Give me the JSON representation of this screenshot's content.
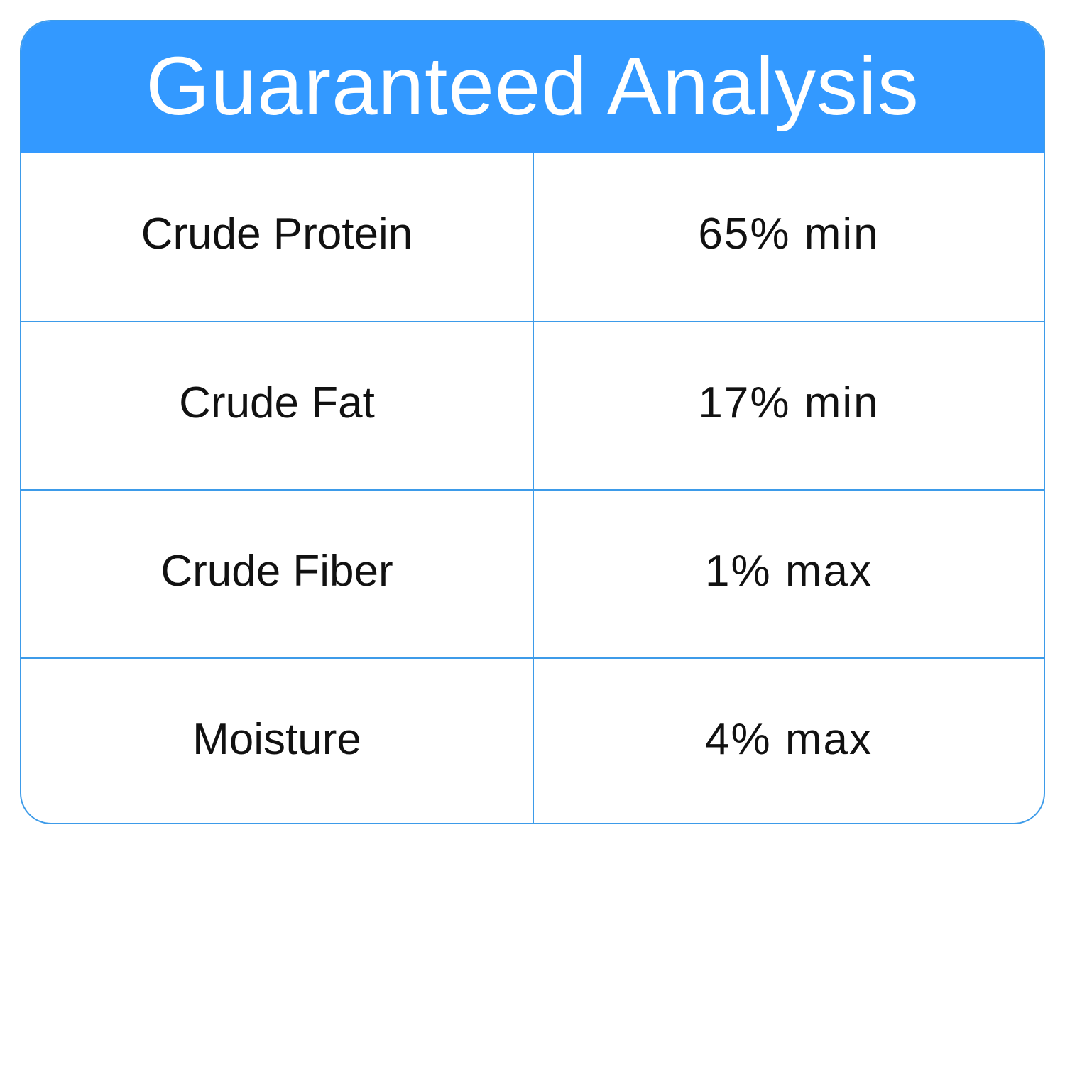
{
  "title": "Guaranteed Analysis",
  "colors": {
    "header": "#3399ff",
    "border": "#3d9be9"
  },
  "rows": [
    {
      "nutrient": "Crude Protein",
      "value": "65% min"
    },
    {
      "nutrient": "Crude Fat",
      "value": "17% min"
    },
    {
      "nutrient": "Crude Fiber",
      "value": "1% max"
    },
    {
      "nutrient": "Moisture",
      "value": "4% max"
    }
  ]
}
